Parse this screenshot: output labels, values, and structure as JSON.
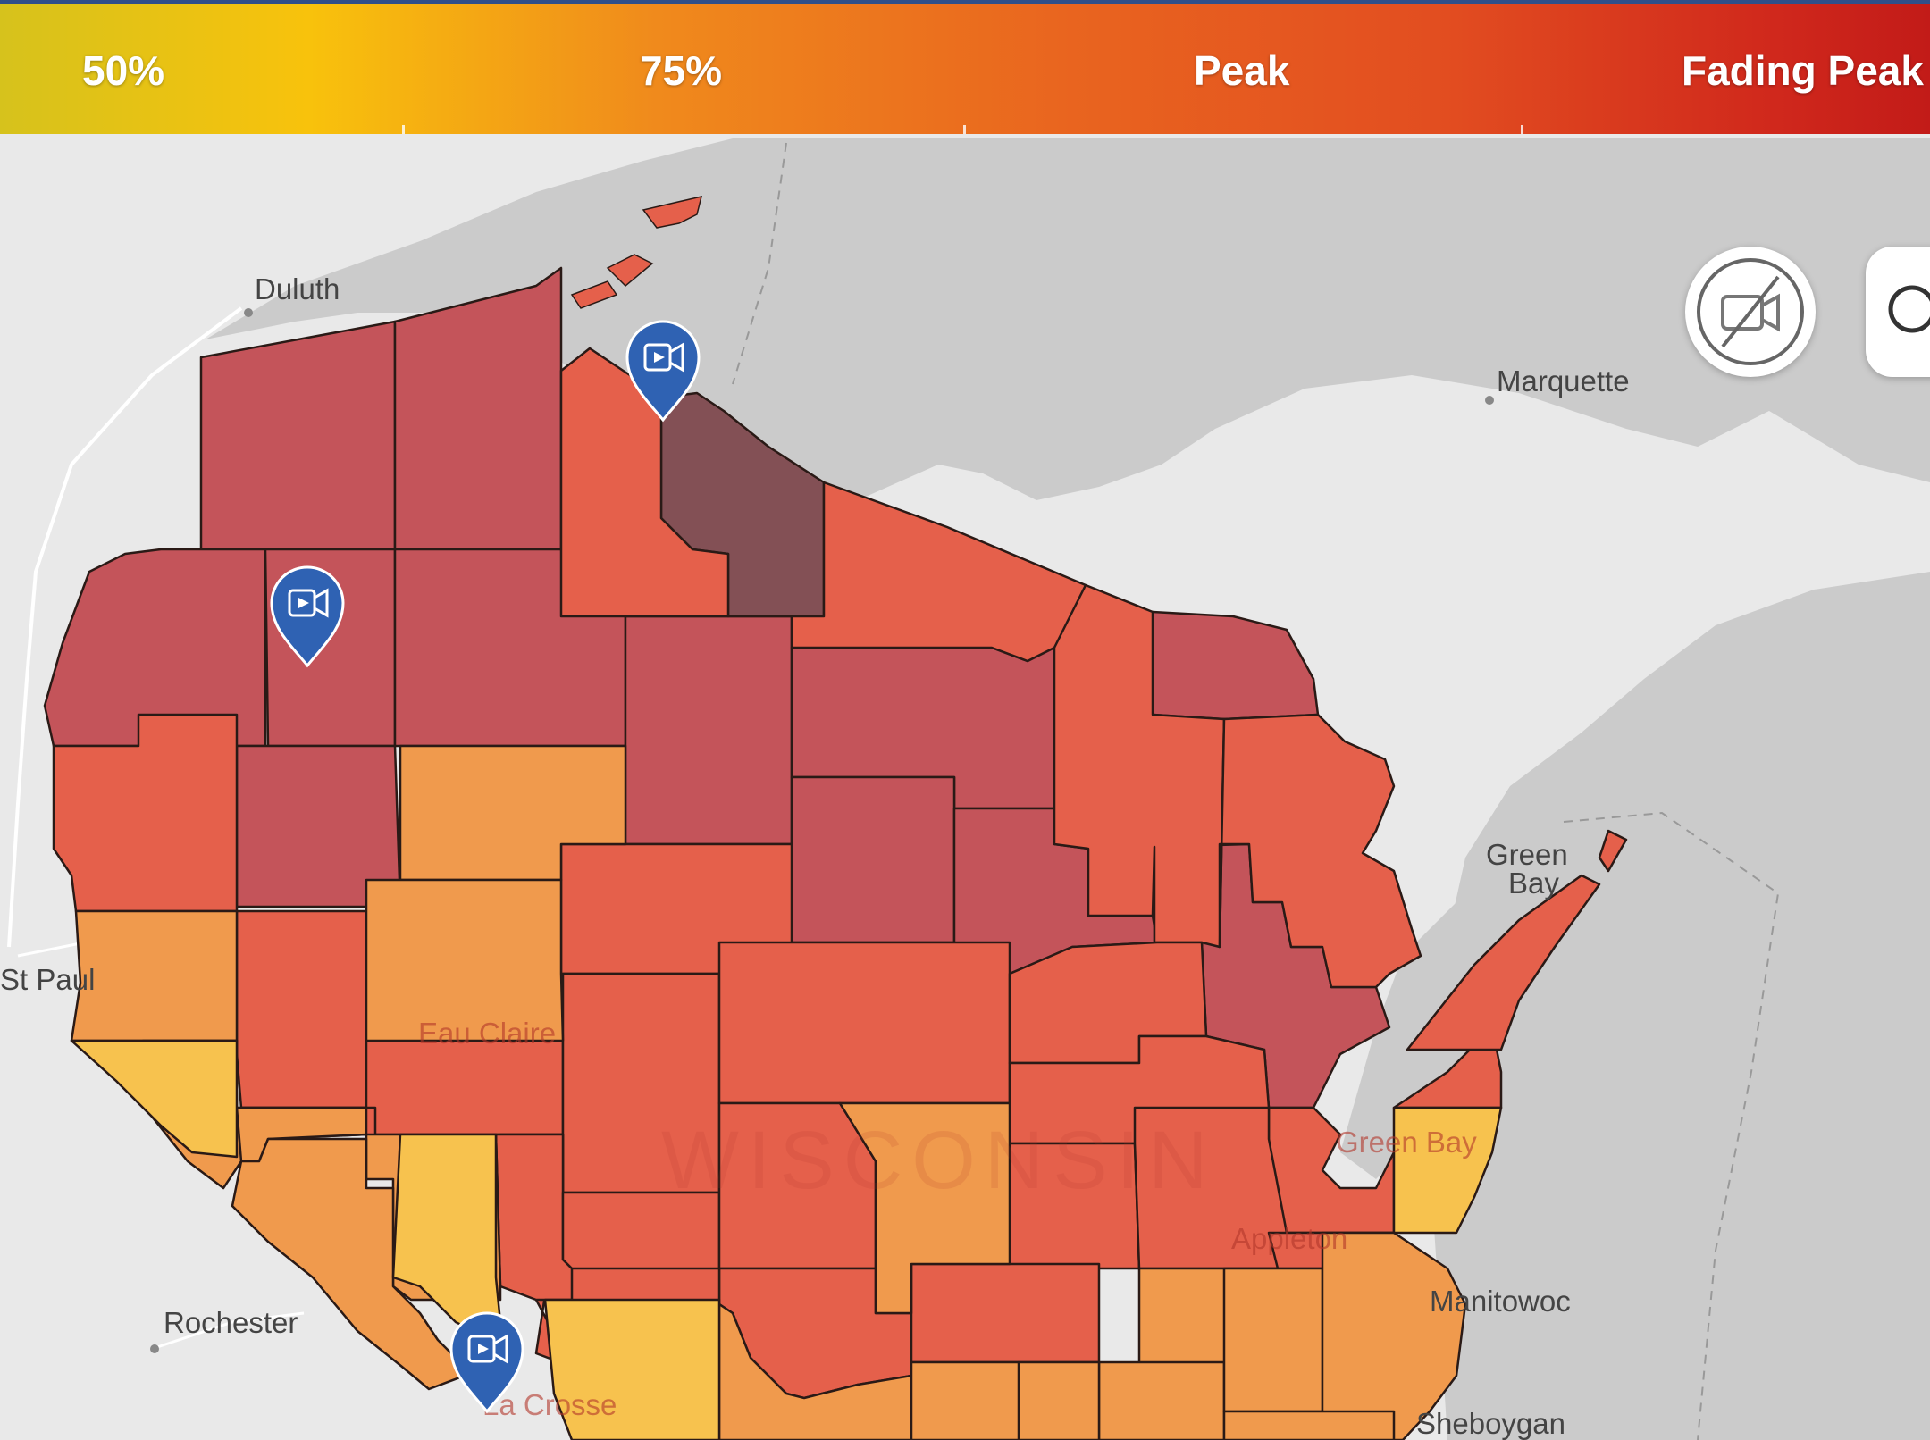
{
  "legend": {
    "items": [
      {
        "label": "50%"
      },
      {
        "label": "75%"
      },
      {
        "label": "Peak"
      },
      {
        "label": "Fading Peak"
      }
    ]
  },
  "map": {
    "state_label": "WISCONSIN",
    "cities": {
      "duluth": "Duluth",
      "marquette": "Marquette",
      "green_bay_water_1": "Green",
      "green_bay_water_2": "Bay",
      "st_paul": "St Paul",
      "eau_claire": "Eau Claire",
      "green_bay_city": "Green Bay",
      "appleton": "Appleton",
      "manitowoc": "Manitowoc",
      "rochester": "Rochester",
      "la_crosse": "La Crosse",
      "sheboygan": "Sheboygan"
    },
    "colors": {
      "fading_peak": "#c4545a",
      "past_peak": "#835055",
      "peak": "#e5604b",
      "pct75": "#f09a4d",
      "pct50": "#f7c24e",
      "water": "#cbcbcb",
      "land": "#e9e9e9"
    },
    "markers": [
      "video-camera-icon",
      "video-camera-icon",
      "video-camera-icon"
    ],
    "controls": {
      "webcam_toggle_icon": "webcam-off-icon",
      "search_icon": "search-icon"
    }
  }
}
